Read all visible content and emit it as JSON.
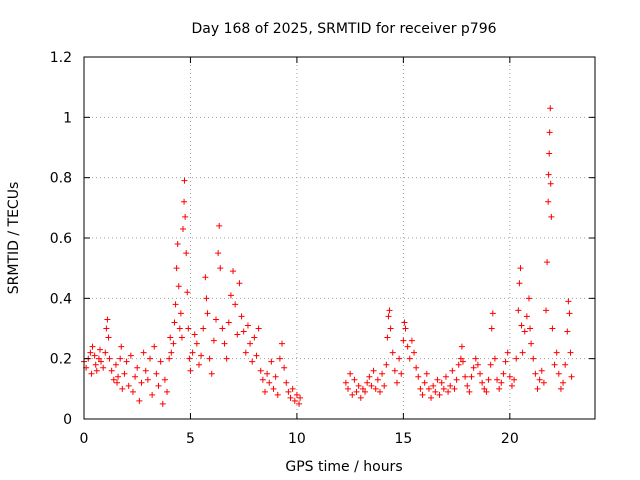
{
  "chart_data": {
    "type": "scatter",
    "title": "Day 168 of 2025, SRMTID for receiver p796",
    "xlabel": "GPS time / hours",
    "ylabel": "SRMTID / TECUs",
    "xlim": [
      0,
      24
    ],
    "ylim": [
      0,
      1.2
    ],
    "xticks": [
      0,
      5,
      10,
      15,
      20
    ],
    "xtick_labels": [
      "0",
      "5",
      "10",
      "15",
      "20"
    ],
    "yticks": [
      0,
      0.2,
      0.4,
      0.6,
      0.8,
      1.0,
      1.2
    ],
    "ytick_labels": [
      "0",
      "0.2",
      "0.4",
      "0.6",
      "0.8",
      "1",
      "1.2"
    ],
    "grid": true,
    "marker": "+",
    "color": "#ff0000",
    "series": [
      {
        "name": "SRMTID",
        "points": [
          [
            0.0,
            0.19
          ],
          [
            0.1,
            0.17
          ],
          [
            0.2,
            0.2
          ],
          [
            0.3,
            0.22
          ],
          [
            0.35,
            0.15
          ],
          [
            0.4,
            0.24
          ],
          [
            0.5,
            0.21
          ],
          [
            0.55,
            0.18
          ],
          [
            0.6,
            0.16
          ],
          [
            0.7,
            0.2
          ],
          [
            0.75,
            0.23
          ],
          [
            0.8,
            0.19
          ],
          [
            0.9,
            0.17
          ],
          [
            1.0,
            0.22
          ],
          [
            1.05,
            0.3
          ],
          [
            1.1,
            0.33
          ],
          [
            1.15,
            0.27
          ],
          [
            1.2,
            0.2
          ],
          [
            1.3,
            0.16
          ],
          [
            1.4,
            0.13
          ],
          [
            1.5,
            0.18
          ],
          [
            1.55,
            0.12
          ],
          [
            1.6,
            0.14
          ],
          [
            1.7,
            0.2
          ],
          [
            1.75,
            0.24
          ],
          [
            1.8,
            0.1
          ],
          [
            1.9,
            0.15
          ],
          [
            2.0,
            0.19
          ],
          [
            2.1,
            0.11
          ],
          [
            2.2,
            0.21
          ],
          [
            2.3,
            0.09
          ],
          [
            2.4,
            0.14
          ],
          [
            2.5,
            0.17
          ],
          [
            2.6,
            0.06
          ],
          [
            2.7,
            0.12
          ],
          [
            2.8,
            0.22
          ],
          [
            2.9,
            0.16
          ],
          [
            3.0,
            0.13
          ],
          [
            3.1,
            0.2
          ],
          [
            3.2,
            0.08
          ],
          [
            3.3,
            0.24
          ],
          [
            3.4,
            0.15
          ],
          [
            3.5,
            0.11
          ],
          [
            3.6,
            0.19
          ],
          [
            3.7,
            0.05
          ],
          [
            3.8,
            0.13
          ],
          [
            3.9,
            0.09
          ],
          [
            4.0,
            0.2
          ],
          [
            4.05,
            0.27
          ],
          [
            4.1,
            0.22
          ],
          [
            4.2,
            0.25
          ],
          [
            4.25,
            0.32
          ],
          [
            4.3,
            0.38
          ],
          [
            4.35,
            0.5
          ],
          [
            4.4,
            0.58
          ],
          [
            4.45,
            0.44
          ],
          [
            4.5,
            0.3
          ],
          [
            4.55,
            0.35
          ],
          [
            4.6,
            0.27
          ],
          [
            4.65,
            0.63
          ],
          [
            4.7,
            0.72
          ],
          [
            4.72,
            0.79
          ],
          [
            4.75,
            0.67
          ],
          [
            4.8,
            0.55
          ],
          [
            4.85,
            0.42
          ],
          [
            4.9,
            0.3
          ],
          [
            4.95,
            0.2
          ],
          [
            5.0,
            0.16
          ],
          [
            5.1,
            0.22
          ],
          [
            5.2,
            0.28
          ],
          [
            5.3,
            0.25
          ],
          [
            5.4,
            0.18
          ],
          [
            5.5,
            0.21
          ],
          [
            5.6,
            0.3
          ],
          [
            5.7,
            0.47
          ],
          [
            5.75,
            0.4
          ],
          [
            5.8,
            0.35
          ],
          [
            5.9,
            0.2
          ],
          [
            6.0,
            0.15
          ],
          [
            6.1,
            0.26
          ],
          [
            6.2,
            0.33
          ],
          [
            6.3,
            0.55
          ],
          [
            6.35,
            0.64
          ],
          [
            6.4,
            0.5
          ],
          [
            6.5,
            0.3
          ],
          [
            6.6,
            0.25
          ],
          [
            6.7,
            0.2
          ],
          [
            6.8,
            0.32
          ],
          [
            6.9,
            0.41
          ],
          [
            7.0,
            0.49
          ],
          [
            7.1,
            0.38
          ],
          [
            7.2,
            0.28
          ],
          [
            7.3,
            0.45
          ],
          [
            7.4,
            0.34
          ],
          [
            7.5,
            0.29
          ],
          [
            7.6,
            0.22
          ],
          [
            7.7,
            0.31
          ],
          [
            7.8,
            0.25
          ],
          [
            7.9,
            0.19
          ],
          [
            8.0,
            0.27
          ],
          [
            8.1,
            0.21
          ],
          [
            8.2,
            0.3
          ],
          [
            8.3,
            0.16
          ],
          [
            8.4,
            0.13
          ],
          [
            8.5,
            0.09
          ],
          [
            8.6,
            0.15
          ],
          [
            8.7,
            0.12
          ],
          [
            8.8,
            0.19
          ],
          [
            8.9,
            0.1
          ],
          [
            9.0,
            0.14
          ],
          [
            9.1,
            0.08
          ],
          [
            9.2,
            0.2
          ],
          [
            9.3,
            0.25
          ],
          [
            9.4,
            0.17
          ],
          [
            9.5,
            0.12
          ],
          [
            9.6,
            0.09
          ],
          [
            9.7,
            0.07
          ],
          [
            9.8,
            0.1
          ],
          [
            9.9,
            0.06
          ],
          [
            10.0,
            0.08
          ],
          [
            10.1,
            0.05
          ],
          [
            10.15,
            0.07
          ],
          [
            12.3,
            0.12
          ],
          [
            12.4,
            0.1
          ],
          [
            12.5,
            0.15
          ],
          [
            12.6,
            0.08
          ],
          [
            12.7,
            0.13
          ],
          [
            12.8,
            0.09
          ],
          [
            12.9,
            0.11
          ],
          [
            13.0,
            0.07
          ],
          [
            13.1,
            0.1
          ],
          [
            13.2,
            0.09
          ],
          [
            13.3,
            0.12
          ],
          [
            13.4,
            0.14
          ],
          [
            13.5,
            0.11
          ],
          [
            13.6,
            0.16
          ],
          [
            13.7,
            0.1
          ],
          [
            13.8,
            0.13
          ],
          [
            13.9,
            0.09
          ],
          [
            14.0,
            0.15
          ],
          [
            14.1,
            0.11
          ],
          [
            14.2,
            0.18
          ],
          [
            14.25,
            0.27
          ],
          [
            14.3,
            0.34
          ],
          [
            14.35,
            0.36
          ],
          [
            14.4,
            0.3
          ],
          [
            14.5,
            0.22
          ],
          [
            14.6,
            0.16
          ],
          [
            14.7,
            0.12
          ],
          [
            14.8,
            0.2
          ],
          [
            14.9,
            0.15
          ],
          [
            15.0,
            0.26
          ],
          [
            15.05,
            0.32
          ],
          [
            15.1,
            0.3
          ],
          [
            15.2,
            0.24
          ],
          [
            15.3,
            0.2
          ],
          [
            15.4,
            0.26
          ],
          [
            15.5,
            0.22
          ],
          [
            15.6,
            0.17
          ],
          [
            15.7,
            0.14
          ],
          [
            15.8,
            0.1
          ],
          [
            15.9,
            0.08
          ],
          [
            16.0,
            0.12
          ],
          [
            16.1,
            0.15
          ],
          [
            16.2,
            0.1
          ],
          [
            16.3,
            0.07
          ],
          [
            16.4,
            0.11
          ],
          [
            16.5,
            0.09
          ],
          [
            16.6,
            0.13
          ],
          [
            16.7,
            0.08
          ],
          [
            16.8,
            0.12
          ],
          [
            16.9,
            0.1
          ],
          [
            17.0,
            0.14
          ],
          [
            17.1,
            0.09
          ],
          [
            17.2,
            0.11
          ],
          [
            17.3,
            0.16
          ],
          [
            17.4,
            0.1
          ],
          [
            17.5,
            0.13
          ],
          [
            17.6,
            0.18
          ],
          [
            17.7,
            0.2
          ],
          [
            17.75,
            0.24
          ],
          [
            17.8,
            0.19
          ],
          [
            17.9,
            0.14
          ],
          [
            18.0,
            0.11
          ],
          [
            18.1,
            0.09
          ],
          [
            18.2,
            0.14
          ],
          [
            18.3,
            0.17
          ],
          [
            18.4,
            0.2
          ],
          [
            18.5,
            0.18
          ],
          [
            18.6,
            0.15
          ],
          [
            18.7,
            0.12
          ],
          [
            18.8,
            0.1
          ],
          [
            18.9,
            0.09
          ],
          [
            19.0,
            0.13
          ],
          [
            19.1,
            0.18
          ],
          [
            19.15,
            0.3
          ],
          [
            19.2,
            0.35
          ],
          [
            19.3,
            0.2
          ],
          [
            19.4,
            0.13
          ],
          [
            19.5,
            0.1
          ],
          [
            19.6,
            0.12
          ],
          [
            19.7,
            0.15
          ],
          [
            19.8,
            0.19
          ],
          [
            19.9,
            0.22
          ],
          [
            20.0,
            0.14
          ],
          [
            20.1,
            0.11
          ],
          [
            20.2,
            0.13
          ],
          [
            20.3,
            0.2
          ],
          [
            20.4,
            0.36
          ],
          [
            20.45,
            0.45
          ],
          [
            20.5,
            0.5
          ],
          [
            20.55,
            0.31
          ],
          [
            20.6,
            0.22
          ],
          [
            20.7,
            0.29
          ],
          [
            20.8,
            0.34
          ],
          [
            20.9,
            0.4
          ],
          [
            20.95,
            0.3
          ],
          [
            21.0,
            0.25
          ],
          [
            21.1,
            0.2
          ],
          [
            21.2,
            0.15
          ],
          [
            21.3,
            0.1
          ],
          [
            21.4,
            0.13
          ],
          [
            21.5,
            0.16
          ],
          [
            21.6,
            0.12
          ],
          [
            21.7,
            0.36
          ],
          [
            21.75,
            0.52
          ],
          [
            21.8,
            0.72
          ],
          [
            21.82,
            0.81
          ],
          [
            21.85,
            0.88
          ],
          [
            21.87,
            0.95
          ],
          [
            21.9,
            1.03
          ],
          [
            21.92,
            0.78
          ],
          [
            21.95,
            0.67
          ],
          [
            22.0,
            0.3
          ],
          [
            22.1,
            0.18
          ],
          [
            22.2,
            0.22
          ],
          [
            22.3,
            0.15
          ],
          [
            22.4,
            0.1
          ],
          [
            22.5,
            0.12
          ],
          [
            22.6,
            0.18
          ],
          [
            22.7,
            0.29
          ],
          [
            22.75,
            0.39
          ],
          [
            22.8,
            0.35
          ],
          [
            22.85,
            0.22
          ],
          [
            22.9,
            0.14
          ]
        ]
      }
    ]
  }
}
